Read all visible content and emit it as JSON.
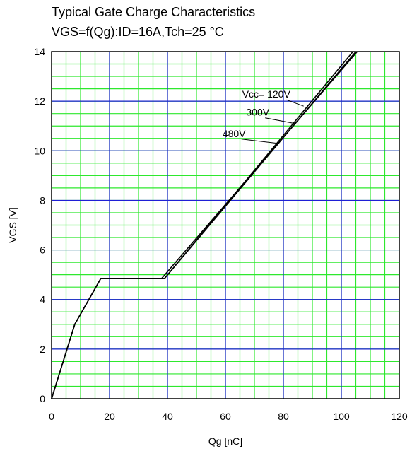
{
  "chart_data": {
    "type": "line",
    "title": "Typical Gate Charge Characteristics",
    "subtitle": "VGS=f(Qg):ID=16A,Tch=25 °C",
    "xlabel": "Qg [nC]",
    "ylabel": "VGS [V]",
    "xlim": [
      0,
      120
    ],
    "ylim": [
      0,
      14
    ],
    "x_ticks": [
      0,
      20,
      40,
      60,
      80,
      100,
      120
    ],
    "y_ticks": [
      0,
      2,
      4,
      6,
      8,
      10,
      12,
      14
    ],
    "grid": true,
    "minor_grid": true,
    "colors": {
      "major_grid": "#1f1fd6",
      "minor_grid": "#2ee82e",
      "series": "#000000",
      "frame": "#000000"
    },
    "series": [
      {
        "name": "Vcc= 120V",
        "x": [
          0,
          8,
          17,
          39,
          104
        ],
        "y": [
          0,
          3,
          4.85,
          4.85,
          14
        ]
      },
      {
        "name": "300V",
        "x": [
          0,
          8,
          17,
          39,
          105
        ],
        "y": [
          0,
          3,
          4.85,
          4.85,
          14
        ]
      },
      {
        "name": "480V",
        "x": [
          0,
          8,
          17,
          38,
          105.5
        ],
        "y": [
          0,
          3,
          4.85,
          4.85,
          14
        ]
      }
    ],
    "annotations": [
      {
        "text": "Vcc= 120V",
        "series_index": 0,
        "point": [
          87,
          11.8
        ]
      },
      {
        "text": "300V",
        "series_index": 1,
        "point": [
          84,
          11.1
        ]
      },
      {
        "text": "480V",
        "series_index": 2,
        "point": [
          78,
          10.3
        ]
      }
    ]
  }
}
